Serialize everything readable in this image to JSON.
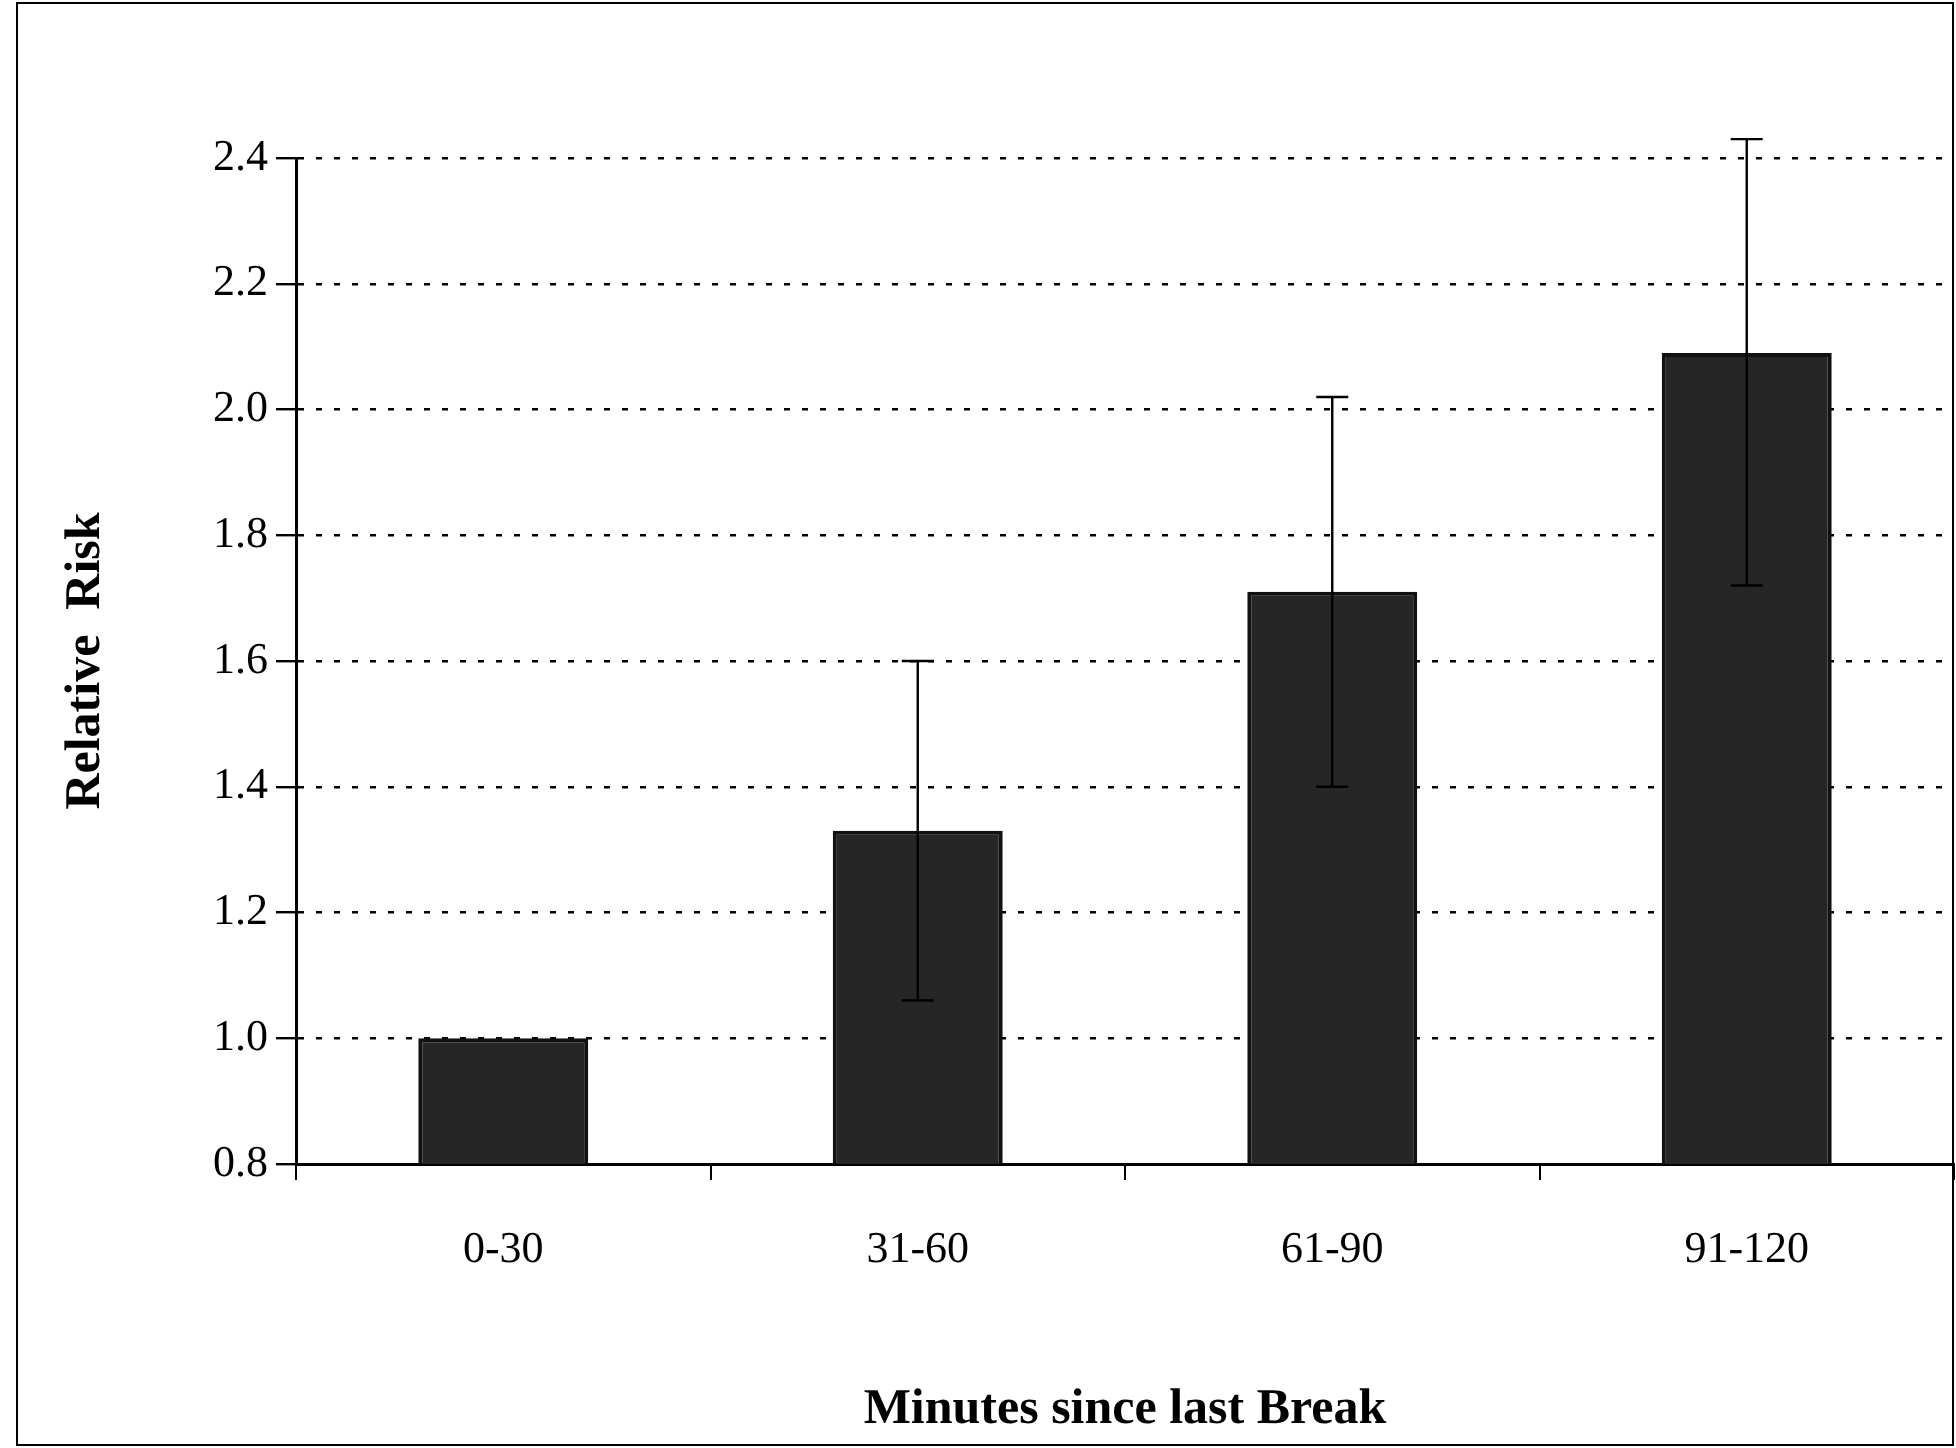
{
  "chart_data": {
    "type": "bar",
    "xlabel": "Minutes since last Break",
    "ylabel": "Relative  Risk",
    "categories": [
      "0-30",
      "31-60",
      "61-90",
      "91-120"
    ],
    "values": [
      1.0,
      1.33,
      1.71,
      2.09
    ],
    "errors": [
      null,
      [
        1.06,
        1.6
      ],
      [
        1.4,
        2.02
      ],
      [
        1.72,
        2.43
      ]
    ],
    "color": "#262626",
    "ylim": [
      0.8,
      2.4
    ],
    "yticks": [
      0.8,
      {
        "value": 1,
        "label": "1.0"
      },
      1.2,
      1.4,
      1.6,
      1.8,
      {
        "value": 2,
        "label": "2.0"
      },
      2.2,
      2.4
    ],
    "grid": "y"
  }
}
